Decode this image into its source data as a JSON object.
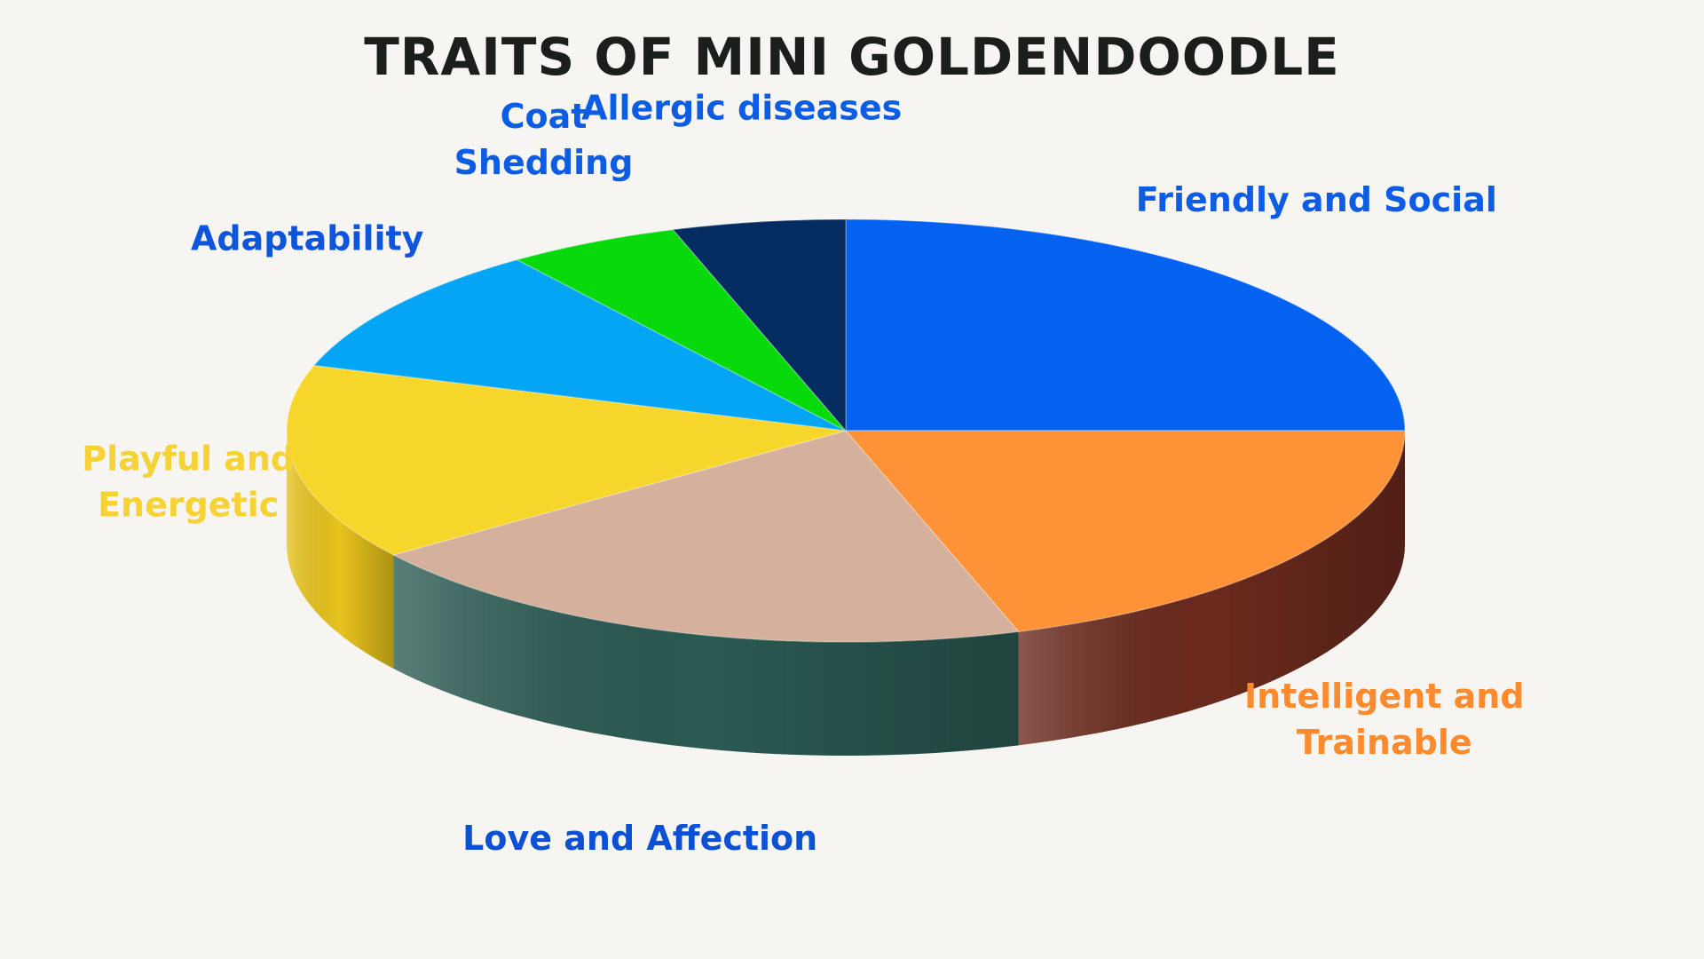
{
  "chart_data": {
    "type": "pie",
    "title": "TRAITS OF MINI GOLDENDOODLE",
    "categories": [
      "Friendly and Social",
      "Intelligent and Trainable",
      "Love and Affection",
      "Playful and Energetic",
      "Adaptability",
      "Coat Shedding",
      "Allergic diseases"
    ],
    "values": [
      25,
      20,
      20,
      15,
      10,
      5,
      5
    ],
    "label_lines": [
      [
        "Friendly and Social"
      ],
      [
        "Intelligent and",
        "Trainable"
      ],
      [
        "Love and Affection"
      ],
      [
        "Playful and",
        "Energetic"
      ],
      [
        "Adaptability"
      ],
      [
        "Coat",
        "Shedding"
      ],
      [
        "Allergic diseases"
      ]
    ],
    "colors": [
      "#0462f0",
      "#fe9237",
      "#d5b09c",
      "#f7d62b",
      "#03a5f4",
      "#08d90a",
      "#052c60"
    ],
    "side_colors": [
      "#0347b0",
      "#6b2a1d",
      "#2a5a52",
      "#e7c31d",
      "#0a79b8",
      "#06a408",
      "#031d40"
    ],
    "label_colors": [
      "#0d5ce4",
      "#fe8a2e",
      "#0c50d6",
      "#f7d234",
      "#0d56dc",
      "#0d5ce4",
      "#0d5ce4"
    ],
    "legend": "none",
    "view": "3d-tilted"
  }
}
